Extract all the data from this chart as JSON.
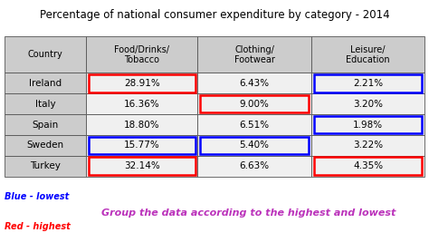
{
  "title": "Percentage of national consumer expenditure by category - 2014",
  "columns": [
    "Country",
    "Food/Drinks/\nTobacco",
    "Clothing/\nFootwear",
    "Leisure/\nEducation"
  ],
  "col_keys": [
    "Country",
    "Food",
    "Clothing",
    "Leisure"
  ],
  "rows": [
    [
      "Ireland",
      "28.91%",
      "6.43%",
      "2.21%"
    ],
    [
      "Italy",
      "16.36%",
      "9.00%",
      "3.20%"
    ],
    [
      "Spain",
      "18.80%",
      "6.51%",
      "1.98%"
    ],
    [
      "Sweden",
      "15.77%",
      "5.40%",
      "3.22%"
    ],
    [
      "Turkey",
      "32.14%",
      "6.63%",
      "4.35%"
    ]
  ],
  "cell_borders": {
    "Ireland-Food": "red",
    "Ireland-Leisure": "blue",
    "Italy-Clothing": "red",
    "Spain-Leisure": "blue",
    "Sweden-Food": "blue",
    "Sweden-Clothing": "blue",
    "Turkey-Food": "red",
    "Turkey-Leisure": "red"
  },
  "legend_blue": "Blue - lowest",
  "legend_red": "Red - highest",
  "note": "Group the data according to the highest and lowest",
  "note_color": "#bb33bb",
  "bg_color": "#ffffff",
  "header_bg": "#cccccc",
  "row_bg": "#cccccc",
  "data_bg": "#f0f0f0",
  "title_fontsize": 8.5,
  "cell_fontsize": 7.5,
  "header_fontsize": 7.0
}
